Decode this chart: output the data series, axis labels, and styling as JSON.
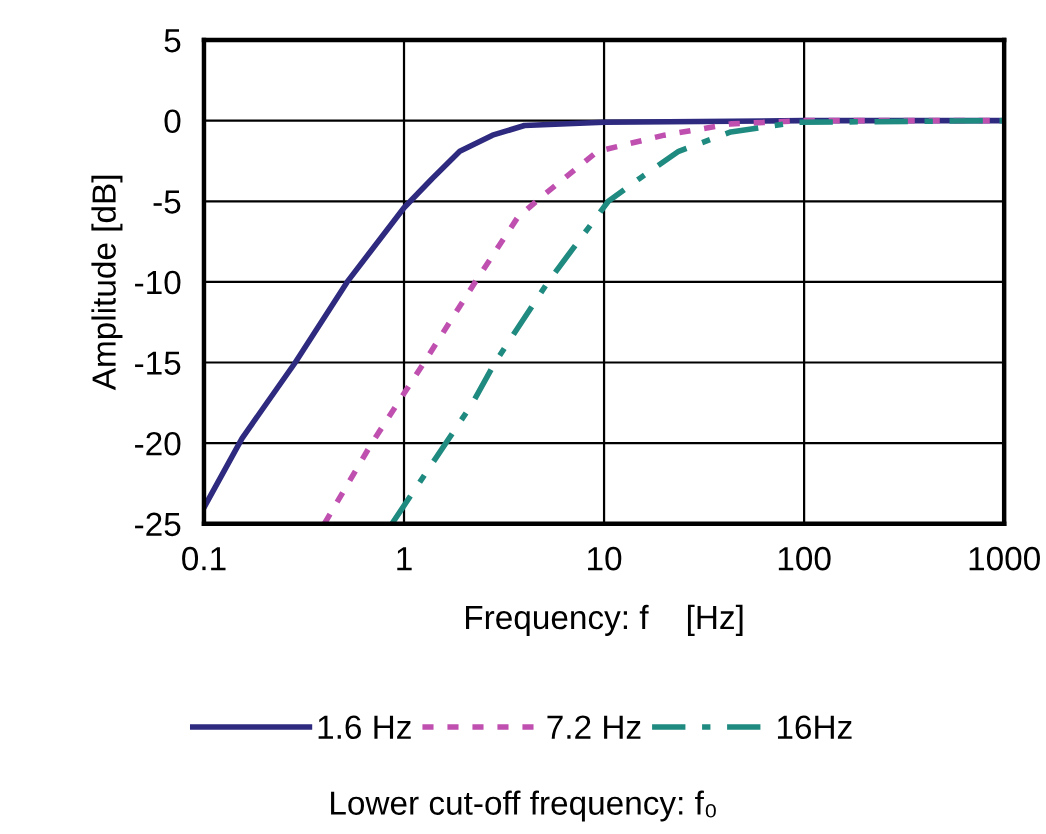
{
  "chart_data": {
    "type": "line",
    "xlabel": "Frequency: f    [Hz]",
    "ylabel": "Amplitude [dB]",
    "legend_title": "Lower cut-off frequency: f₀",
    "log": "x",
    "xlim": [
      0.1,
      1000
    ],
    "xticks": [
      0.1,
      1,
      10,
      100,
      1000
    ],
    "ylim": [
      -25,
      5
    ],
    "yticks": [
      -25,
      -20,
      -15,
      -10,
      -5,
      0,
      5
    ],
    "grid": true,
    "legend": "bottom",
    "series": [
      {
        "name": "1.6 Hz",
        "color": "#2e2a7f",
        "line_style": "solid",
        "x": [
          0.1,
          0.155,
          0.286,
          0.52,
          1.0,
          1.38,
          1.9,
          2.77,
          4,
          10,
          100,
          1000
        ],
        "values": [
          -24,
          -19.7,
          -15,
          -10,
          -5.4,
          -3.6,
          -1.9,
          -0.9,
          -0.3,
          -0.1,
          0,
          0
        ]
      },
      {
        "name": "7.2 Hz",
        "color": "#c050b0",
        "line_style": "dotted",
        "x": [
          0.4,
          0.69,
          1.26,
          2.27,
          3.7,
          5,
          9.3,
          20,
          43,
          100,
          1000
        ],
        "values": [
          -25,
          -20,
          -15,
          -10,
          -6,
          -4.6,
          -1.9,
          -0.9,
          -0.2,
          0,
          0
        ]
      },
      {
        "name": "16Hz",
        "color": "#1f8a80",
        "line_style": "dashdot",
        "x": [
          0.87,
          2.18,
          2.85,
          5.25,
          10.5,
          15,
          23.6,
          43,
          92,
          1000
        ],
        "values": [
          -25,
          -17.6,
          -15,
          -10,
          -5,
          -3.6,
          -1.9,
          -0.7,
          -0.1,
          0
        ]
      }
    ]
  }
}
